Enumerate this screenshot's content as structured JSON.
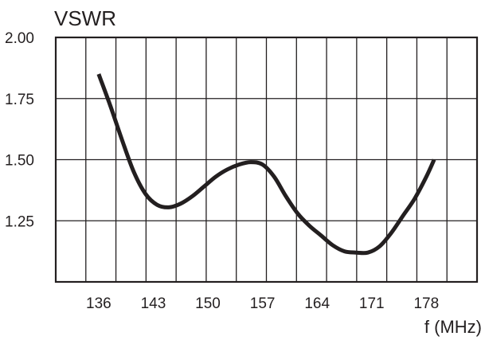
{
  "chart_data": {
    "type": "line",
    "title": "VSWR",
    "xlabel": "f (MHz)",
    "ylabel": "VSWR",
    "xlim": [
      130.5,
      184.5
    ],
    "ylim": [
      1.0,
      2.0
    ],
    "x_ticks": [
      136,
      143,
      150,
      157,
      164,
      171,
      178
    ],
    "x_tick_labels": [
      "136",
      "143",
      "150",
      "157",
      "164",
      "171",
      "178"
    ],
    "y_ticks": [
      1.25,
      1.5,
      1.75,
      2.0
    ],
    "y_tick_labels": [
      "1.25",
      "1.50",
      "1.75",
      "2.00"
    ],
    "grid": true,
    "series": [
      {
        "x": [
          136,
          137.5,
          139,
          140.5,
          142,
          143.5,
          145,
          146.5,
          148,
          149.5,
          151,
          152.5,
          154,
          155.5,
          157,
          158.5,
          160,
          161.5,
          163,
          164.5,
          166,
          167.5,
          169,
          170.5,
          172,
          173.5,
          175,
          176.5,
          178,
          179
        ],
        "values": [
          1.85,
          1.72,
          1.58,
          1.45,
          1.36,
          1.315,
          1.305,
          1.32,
          1.35,
          1.39,
          1.43,
          1.46,
          1.48,
          1.49,
          1.48,
          1.43,
          1.35,
          1.28,
          1.23,
          1.19,
          1.15,
          1.125,
          1.12,
          1.12,
          1.145,
          1.2,
          1.27,
          1.34,
          1.43,
          1.5
        ],
        "color": "#231f20"
      }
    ]
  }
}
